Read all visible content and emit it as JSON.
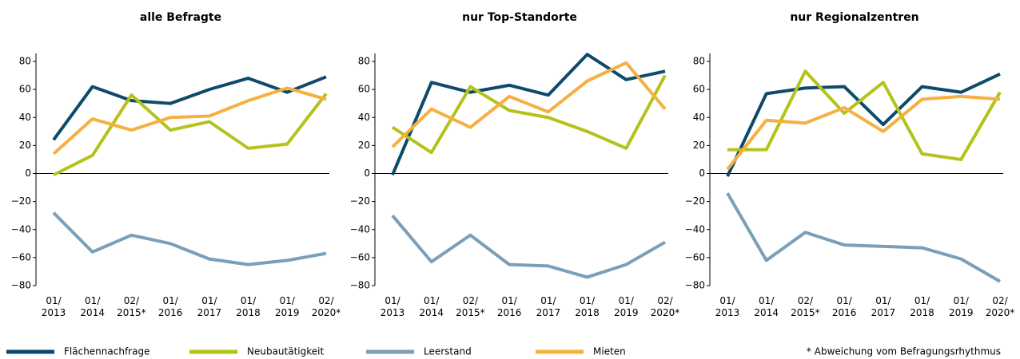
{
  "chart_data": [
    {
      "type": "line",
      "title": "alle Befragte",
      "categories": [
        "01/\n2013",
        "01/\n2014",
        "02/\n2015*",
        "01/\n2016",
        "01/\n2017",
        "01/\n2018",
        "01/\n2019",
        "02/\n2020*"
      ],
      "ylim": [
        -80,
        80
      ],
      "yticks": [
        {
          "value": -80,
          "label": "−80"
        },
        {
          "value": -60,
          "label": "−60"
        },
        {
          "value": -40,
          "label": "−40"
        },
        {
          "value": -20,
          "label": "−20"
        },
        0,
        20,
        40,
        60,
        80
      ],
      "series": [
        {
          "name": "Flächennachfrage",
          "color": "#0e4a6b",
          "values": [
            24,
            62,
            52,
            50,
            60,
            68,
            58,
            69
          ]
        },
        {
          "name": "Neubautätigkeit",
          "color": "#b5c21b",
          "values": [
            -1,
            13,
            56,
            31,
            37,
            18,
            21,
            57
          ]
        },
        {
          "name": "Leerstand",
          "color": "#7a9fb8",
          "values": [
            -28,
            -56,
            -44,
            -50,
            -61,
            -65,
            -62,
            -57
          ]
        },
        {
          "name": "Mieten",
          "color": "#f5b041",
          "values": [
            14,
            39,
            31,
            40,
            41,
            52,
            61,
            53
          ]
        }
      ]
    },
    {
      "type": "line",
      "title": "nur Top-Standorte",
      "categories": [
        "01/\n2013",
        "01/\n2014",
        "02/\n2015*",
        "01/\n2016",
        "01/\n2017",
        "01/\n2018",
        "01/\n2019",
        "02/\n2020*"
      ],
      "ylim": [
        -80,
        80
      ],
      "yticks": [
        {
          "value": -80,
          "label": "−80"
        },
        {
          "value": -60,
          "label": "−60"
        },
        {
          "value": -40,
          "label": "−40"
        },
        {
          "value": -20,
          "label": "−20"
        },
        0,
        20,
        40,
        60,
        80
      ],
      "series": [
        {
          "name": "Flächennachfrage",
          "color": "#0e4a6b",
          "values": [
            -1,
            65,
            58,
            63,
            56,
            85,
            67,
            73
          ]
        },
        {
          "name": "Neubautätigkeit",
          "color": "#b5c21b",
          "values": [
            33,
            15,
            62,
            45,
            40,
            30,
            18,
            70
          ]
        },
        {
          "name": "Leerstand",
          "color": "#7a9fb8",
          "values": [
            -30,
            -63,
            -44,
            -65,
            -66,
            -74,
            -65,
            -49
          ]
        },
        {
          "name": "Mieten",
          "color": "#f5b041",
          "values": [
            19,
            46,
            33,
            55,
            44,
            66,
            79,
            46
          ]
        }
      ]
    },
    {
      "type": "line",
      "title": "nur Regionalzentren",
      "categories": [
        "01/\n2013",
        "01/\n2014",
        "02/\n2015*",
        "01/\n2016",
        "01/\n2017",
        "01/\n2018",
        "01/\n2019",
        "02/\n2020*"
      ],
      "ylim": [
        -80,
        80
      ],
      "yticks": [
        {
          "value": -80,
          "label": "−80"
        },
        {
          "value": -60,
          "label": "−60"
        },
        {
          "value": -40,
          "label": "−40"
        },
        {
          "value": -20,
          "label": "−20"
        },
        0,
        20,
        40,
        60,
        80
      ],
      "series": [
        {
          "name": "Flächennachfrage",
          "color": "#0e4a6b",
          "values": [
            -2,
            57,
            61,
            62,
            35,
            62,
            58,
            71
          ]
        },
        {
          "name": "Neubautätigkeit",
          "color": "#b5c21b",
          "values": [
            17,
            17,
            73,
            43,
            65,
            14,
            10,
            58
          ]
        },
        {
          "name": "Leerstand",
          "color": "#7a9fb8",
          "values": [
            -14,
            -62,
            -42,
            -51,
            -52,
            -53,
            -61,
            -77
          ]
        },
        {
          "name": "Mieten",
          "color": "#f5b041",
          "values": [
            3,
            38,
            36,
            47,
            30,
            53,
            55,
            53
          ]
        }
      ]
    }
  ],
  "footnote": "* Abweichung vom Befragungsrhythmus"
}
